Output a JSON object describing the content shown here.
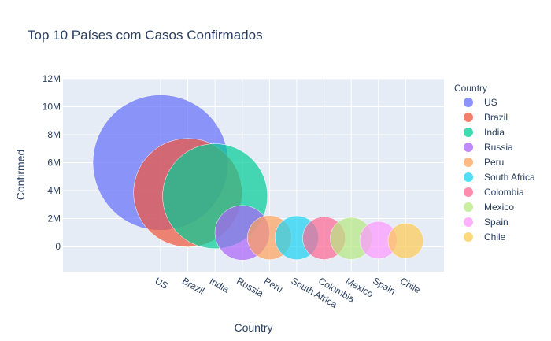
{
  "chart_data": {
    "type": "scatter",
    "title": "Top 10 Países com Casos Confirmados",
    "xlabel": "Country",
    "ylabel": "Confirmed",
    "ylim": [
      -1800000,
      12000000
    ],
    "yticks": [
      0,
      2000000,
      4000000,
      6000000,
      8000000,
      10000000,
      12000000
    ],
    "ytick_labels": [
      "0",
      "2M",
      "4M",
      "6M",
      "8M",
      "10M",
      "12M"
    ],
    "categories": [
      "US",
      "Brazil",
      "India",
      "Russia",
      "Peru",
      "South Africa",
      "Colombia",
      "Mexico",
      "Spain",
      "Chile"
    ],
    "values": [
      6000000,
      3850000,
      3600000,
      980000,
      640000,
      630000,
      600000,
      580000,
      460000,
      410000
    ],
    "grid": true,
    "legend_title": "Country",
    "legend_position": "right",
    "series": [
      {
        "name": "US",
        "color": "#636efa"
      },
      {
        "name": "Brazil",
        "color": "#ef553b"
      },
      {
        "name": "India",
        "color": "#00cc96"
      },
      {
        "name": "Russia",
        "color": "#ab63fa"
      },
      {
        "name": "Peru",
        "color": "#ffa15a"
      },
      {
        "name": "South Africa",
        "color": "#19d3f3"
      },
      {
        "name": "Colombia",
        "color": "#ff6692"
      },
      {
        "name": "Mexico",
        "color": "#b6e880"
      },
      {
        "name": "Spain",
        "color": "#ff97ff"
      },
      {
        "name": "Chile",
        "color": "#fecb52"
      }
    ]
  }
}
